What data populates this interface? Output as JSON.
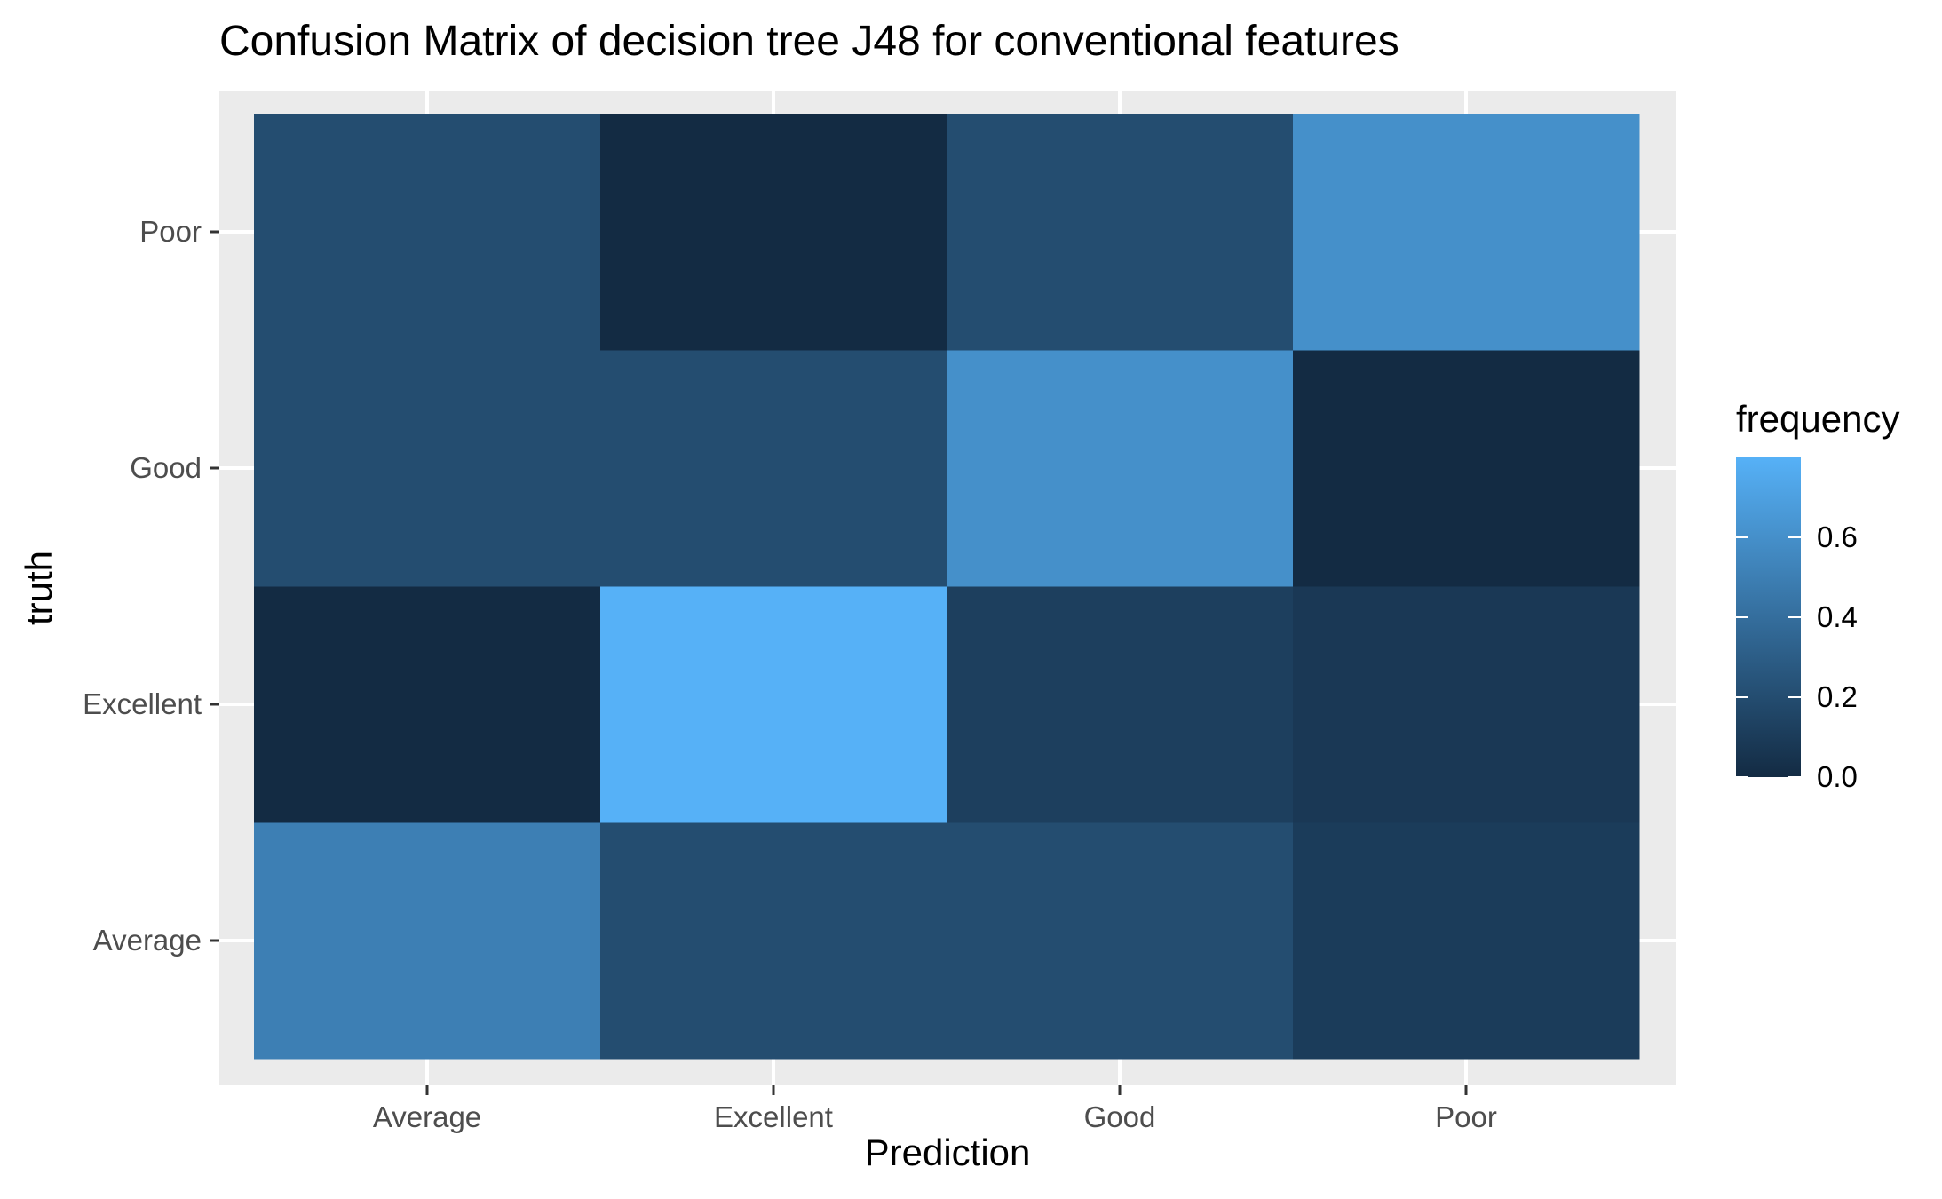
{
  "chart_data": {
    "type": "heatmap",
    "title": "Confusion Matrix of  decision tree J48 for conventional features",
    "xlabel": "Prediction",
    "ylabel": "truth",
    "x_categories": [
      "Average",
      "Excellent",
      "Good",
      "Poor"
    ],
    "y_categories": [
      "Average",
      "Excellent",
      "Good",
      "Poor"
    ],
    "cells": [
      {
        "truth": "Average",
        "prediction": "Average",
        "value": 0.5
      },
      {
        "truth": "Average",
        "prediction": "Excellent",
        "value": 0.2
      },
      {
        "truth": "Average",
        "prediction": "Good",
        "value": 0.2
      },
      {
        "truth": "Average",
        "prediction": "Poor",
        "value": 0.1
      },
      {
        "truth": "Excellent",
        "prediction": "Average",
        "value": 0.0
      },
      {
        "truth": "Excellent",
        "prediction": "Excellent",
        "value": 0.8
      },
      {
        "truth": "Excellent",
        "prediction": "Good",
        "value": 0.12
      },
      {
        "truth": "Excellent",
        "prediction": "Poor",
        "value": 0.08
      },
      {
        "truth": "Good",
        "prediction": "Average",
        "value": 0.2
      },
      {
        "truth": "Good",
        "prediction": "Excellent",
        "value": 0.2
      },
      {
        "truth": "Good",
        "prediction": "Good",
        "value": 0.6
      },
      {
        "truth": "Good",
        "prediction": "Poor",
        "value": 0.0
      },
      {
        "truth": "Poor",
        "prediction": "Average",
        "value": 0.2
      },
      {
        "truth": "Poor",
        "prediction": "Excellent",
        "value": 0.0
      },
      {
        "truth": "Poor",
        "prediction": "Good",
        "value": 0.2
      },
      {
        "truth": "Poor",
        "prediction": "Poor",
        "value": 0.6
      }
    ],
    "legend": {
      "title": "frequency",
      "position": "right",
      "ticks": [
        "0.0",
        "0.2",
        "0.4",
        "0.6"
      ],
      "tick_values": [
        0.0,
        0.2,
        0.4,
        0.6
      ],
      "range": [
        0.0,
        0.8
      ],
      "low_color": "#132B43",
      "high_color": "#56B1F7"
    },
    "panel_background": "#EBEBEB",
    "grid_color": "#FFFFFF",
    "grid": true
  }
}
